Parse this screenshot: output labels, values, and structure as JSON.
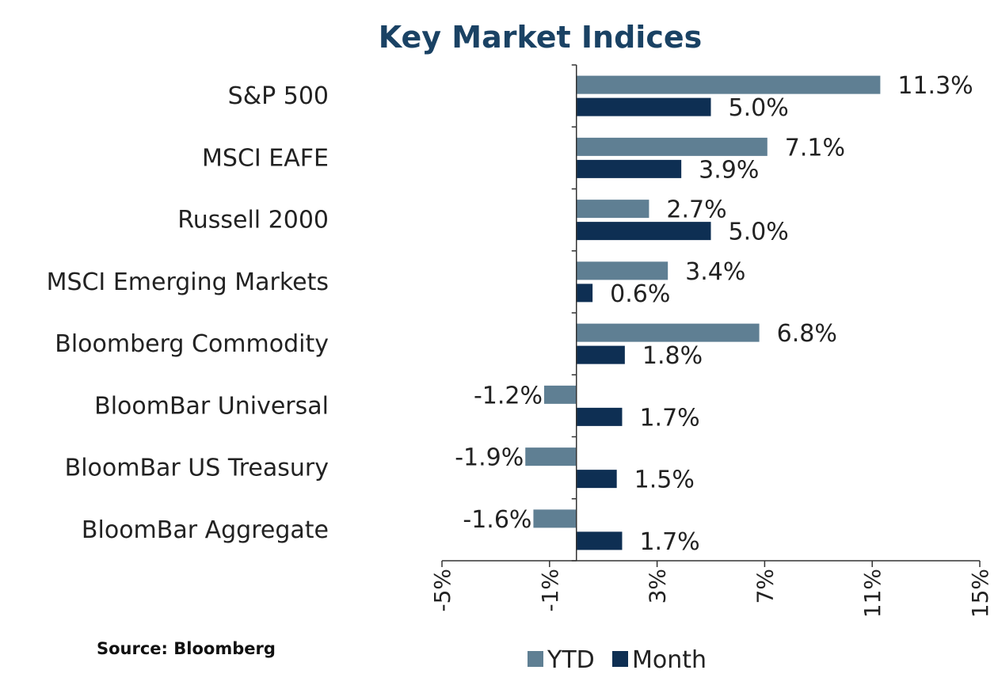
{
  "chart_data": {
    "type": "bar",
    "orientation": "horizontal",
    "title": "Key Market Indices",
    "categories": [
      "S&P 500",
      "MSCI EAFE",
      "Russell 2000",
      "MSCI Emerging Markets",
      "Bloomberg Commodity",
      "BloomBar Universal",
      "BloomBar US Treasury",
      "BloomBar Aggregate"
    ],
    "series": [
      {
        "name": "YTD",
        "color": "#5f7f93",
        "values": [
          11.3,
          7.1,
          2.7,
          3.4,
          6.8,
          -1.2,
          -1.9,
          -1.6
        ],
        "labels": [
          "11.3%",
          "7.1%",
          "2.7%",
          "3.4%",
          "6.8%",
          "-1.2%",
          "-1.9%",
          "-1.6%"
        ]
      },
      {
        "name": "Month",
        "color": "#0e2f53",
        "values": [
          5.0,
          3.9,
          5.0,
          0.6,
          1.8,
          1.7,
          1.5,
          1.7
        ],
        "labels": [
          "5.0%",
          "3.9%",
          "5.0%",
          "0.6%",
          "1.8%",
          "1.7%",
          "1.5%",
          "1.7%"
        ]
      }
    ],
    "xlim": [
      -5,
      15
    ],
    "x_ticks": [
      -5,
      -1,
      3,
      7,
      11,
      15
    ],
    "x_tick_labels": [
      "-5%",
      "-1%",
      "3%",
      "7%",
      "11%",
      "15%"
    ],
    "legend_position": "bottom",
    "grid": false
  },
  "source": "Source: Bloomberg"
}
